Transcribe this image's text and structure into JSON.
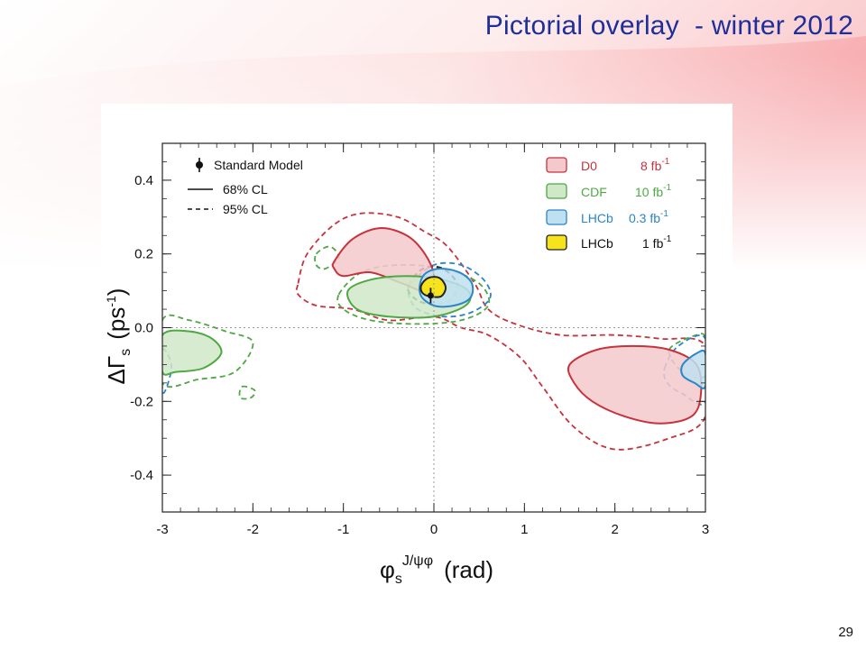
{
  "slide": {
    "title": "Pictorial overlay  - winter 2012",
    "page_number": "29"
  },
  "chart_data": {
    "type": "contour",
    "xlabel_base": "φ",
    "xlabel_sub": "s",
    "xlabel_sup": "J/ψφ",
    "xlabel_unit": "(rad)",
    "ylabel_main": "ΔΓ",
    "ylabel_sub": "s",
    "ylabel_unit": "(ps",
    "ylabel_unit_sup": "-1",
    "ylabel_close": ")",
    "xlim": [
      -3,
      3
    ],
    "ylim": [
      -0.5,
      0.5
    ],
    "x_ticks": [
      -3,
      -2,
      -1,
      0,
      1,
      2,
      3
    ],
    "x_tick_labels": [
      "-3",
      "-2",
      "-1",
      "0",
      "1",
      "2",
      "3"
    ],
    "y_ticks": [
      -0.4,
      -0.2,
      0.0,
      0.2,
      0.4
    ],
    "y_tick_labels": [
      "-0.4",
      "-0.2",
      "0.0",
      "0.2",
      "0.4"
    ],
    "reference_lines": {
      "x": 0,
      "y": 0
    },
    "standard_model": {
      "phi": -0.036,
      "dgamma": 0.087,
      "dgamma_err": 0.021,
      "label": "Standard Model"
    },
    "line_styles": [
      {
        "style": "solid",
        "label": "68% CL"
      },
      {
        "style": "dashed",
        "label": "95% CL"
      }
    ],
    "series": [
      {
        "name": "D0",
        "lumi": "8 fb",
        "lumi_sup": "-1",
        "fill": "#f4c9cc",
        "stroke": "#c8323c",
        "regions_68": [
          [
            [
              -1.1,
              0.18
            ],
            [
              -0.9,
              0.24
            ],
            [
              -0.6,
              0.27
            ],
            [
              -0.3,
              0.25
            ],
            [
              -0.1,
              0.2
            ],
            [
              0.0,
              0.14
            ],
            [
              -0.1,
              0.1
            ],
            [
              -0.35,
              0.12
            ],
            [
              -0.7,
              0.15
            ],
            [
              -1.0,
              0.14
            ],
            [
              -1.1,
              0.16
            ]
          ],
          [
            [
              1.5,
              -0.1
            ],
            [
              1.8,
              -0.06
            ],
            [
              2.2,
              -0.05
            ],
            [
              2.6,
              -0.06
            ],
            [
              2.9,
              -0.1
            ],
            [
              2.95,
              -0.18
            ],
            [
              2.85,
              -0.24
            ],
            [
              2.5,
              -0.26
            ],
            [
              2.1,
              -0.24
            ],
            [
              1.75,
              -0.2
            ],
            [
              1.55,
              -0.15
            ]
          ]
        ],
        "regions_95": [
          [
            [
              -1.5,
              0.12
            ],
            [
              -1.4,
              0.2
            ],
            [
              -1.1,
              0.28
            ],
            [
              -0.8,
              0.31
            ],
            [
              -0.4,
              0.3
            ],
            [
              -0.1,
              0.26
            ],
            [
              0.15,
              0.22
            ],
            [
              0.45,
              0.12
            ],
            [
              0.6,
              0.05
            ],
            [
              0.9,
              0.01
            ],
            [
              1.4,
              -0.02
            ],
            [
              2.0,
              -0.02
            ],
            [
              2.5,
              -0.03
            ],
            [
              3.0,
              -0.05
            ],
            [
              3.0,
              -0.24
            ],
            [
              2.6,
              -0.3
            ],
            [
              2.0,
              -0.33
            ],
            [
              1.55,
              -0.27
            ],
            [
              1.2,
              -0.16
            ],
            [
              0.95,
              -0.08
            ],
            [
              0.6,
              -0.02
            ],
            [
              0.3,
              0.0
            ],
            [
              0.0,
              0.03
            ],
            [
              -0.5,
              0.02
            ],
            [
              -0.9,
              0.05
            ],
            [
              -1.3,
              0.06
            ],
            [
              -1.5,
              0.09
            ]
          ]
        ]
      },
      {
        "name": "CDF",
        "lumi": "10 fb",
        "lumi_sup": "-1",
        "fill": "#cfe8c8",
        "stroke": "#4fa844",
        "regions_68": [
          [
            [
              -0.95,
              0.1
            ],
            [
              -0.7,
              0.13
            ],
            [
              -0.3,
              0.14
            ],
            [
              0.1,
              0.13
            ],
            [
              0.38,
              0.1
            ],
            [
              0.35,
              0.06
            ],
            [
              0.0,
              0.03
            ],
            [
              -0.5,
              0.03
            ],
            [
              -0.85,
              0.05
            ]
          ],
          [
            [
              -3.0,
              -0.02
            ],
            [
              -2.7,
              -0.01
            ],
            [
              -2.45,
              -0.03
            ],
            [
              -2.35,
              -0.07
            ],
            [
              -2.55,
              -0.11
            ],
            [
              -2.85,
              -0.12
            ],
            [
              -3.0,
              -0.12
            ]
          ]
        ],
        "regions_95": [
          [
            [
              -1.05,
              0.09
            ],
            [
              -0.8,
              0.15
            ],
            [
              -0.4,
              0.17
            ],
            [
              0.1,
              0.16
            ],
            [
              0.5,
              0.12
            ],
            [
              0.6,
              0.06
            ],
            [
              0.3,
              0.02
            ],
            [
              -0.2,
              0.01
            ],
            [
              -0.7,
              0.02
            ],
            [
              -1.0,
              0.05
            ]
          ],
          [
            [
              -3.0,
              0.02
            ],
            [
              -2.7,
              0.02
            ],
            [
              -2.3,
              -0.01
            ],
            [
              -2.0,
              -0.04
            ],
            [
              -2.2,
              -0.12
            ],
            [
              -2.6,
              -0.14
            ],
            [
              -3.0,
              -0.15
            ]
          ],
          [
            [
              -1.3,
              0.2
            ],
            [
              -1.15,
              0.22
            ],
            [
              -1.05,
              0.19
            ],
            [
              -1.2,
              0.16
            ],
            [
              -1.3,
              0.17
            ]
          ],
          [
            [
              -2.12,
              -0.16
            ],
            [
              -1.98,
              -0.17
            ],
            [
              -2.02,
              -0.19
            ],
            [
              -2.14,
              -0.19
            ]
          ],
          [
            [
              2.6,
              -0.06
            ],
            [
              2.9,
              -0.02
            ],
            [
              3.0,
              -0.03
            ],
            [
              3.0,
              -0.13
            ],
            [
              2.75,
              -0.12
            ]
          ]
        ]
      },
      {
        "name": "LHCb",
        "lumi": "0.3 fb",
        "lumi_sup": "-1",
        "fill": "#bfe0f0",
        "stroke": "#2a85c9",
        "regions_68": [
          [
            [
              -0.12,
              0.14
            ],
            [
              0.05,
              0.16
            ],
            [
              0.28,
              0.15
            ],
            [
              0.42,
              0.12
            ],
            [
              0.4,
              0.08
            ],
            [
              0.22,
              0.06
            ],
            [
              0.0,
              0.06
            ],
            [
              -0.15,
              0.09
            ]
          ],
          [
            [
              2.75,
              -0.1
            ],
            [
              2.9,
              -0.07
            ],
            [
              3.0,
              -0.07
            ],
            [
              3.0,
              -0.16
            ],
            [
              2.88,
              -0.15
            ],
            [
              2.75,
              -0.13
            ]
          ]
        ],
        "regions_95": [
          [
            [
              -0.25,
              0.12
            ],
            [
              0.0,
              0.17
            ],
            [
              0.3,
              0.17
            ],
            [
              0.55,
              0.13
            ],
            [
              0.62,
              0.08
            ],
            [
              0.4,
              0.04
            ],
            [
              0.1,
              0.03
            ],
            [
              -0.18,
              0.05
            ],
            [
              -0.28,
              0.09
            ]
          ],
          [
            [
              -3.0,
              -0.06
            ],
            [
              -2.9,
              -0.1
            ],
            [
              -2.95,
              -0.16
            ],
            [
              -3.0,
              -0.17
            ]
          ],
          [
            [
              2.55,
              -0.11
            ],
            [
              2.7,
              -0.05
            ],
            [
              3.0,
              -0.03
            ],
            [
              3.0,
              -0.2
            ],
            [
              2.75,
              -0.18
            ],
            [
              2.58,
              -0.15
            ]
          ]
        ]
      },
      {
        "name": "LHCb",
        "lumi": "1 fb",
        "lumi_sup": "-1",
        "fill": "#f7e31c",
        "stroke": "#222222",
        "regions_68": [
          [
            [
              -0.14,
              0.115
            ],
            [
              -0.06,
              0.135
            ],
            [
              0.06,
              0.135
            ],
            [
              0.13,
              0.11
            ],
            [
              0.08,
              0.085
            ],
            [
              -0.05,
              0.085
            ],
            [
              -0.13,
              0.095
            ]
          ]
        ],
        "regions_95": [
          [
            [
              -0.28,
              0.115
            ],
            [
              -0.12,
              0.16
            ],
            [
              0.1,
              0.16
            ],
            [
              0.26,
              0.115
            ],
            [
              0.15,
              0.07
            ],
            [
              -0.08,
              0.065
            ],
            [
              -0.24,
              0.085
            ]
          ]
        ]
      }
    ]
  }
}
